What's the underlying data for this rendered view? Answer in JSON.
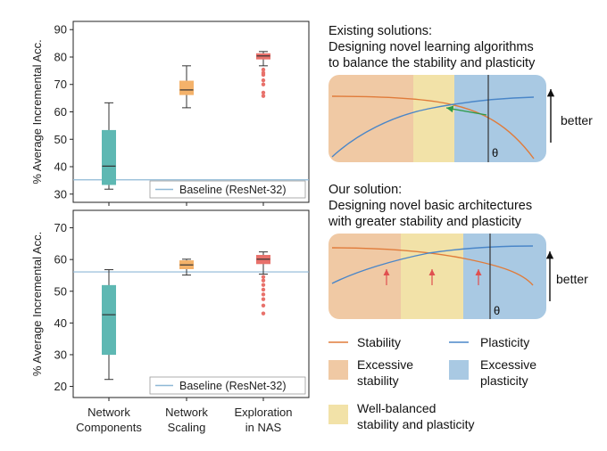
{
  "chart_data": [
    {
      "type": "boxplot",
      "panel": "top",
      "ylabel": "% Average Incremental Acc.",
      "ylim": [
        27,
        93
      ],
      "yticks": [
        30,
        40,
        50,
        60,
        70,
        80,
        90
      ],
      "categories": [
        "Network\nComponents",
        "Network\nScaling",
        "Exploration\nin NAS"
      ],
      "boxes": [
        {
          "min": 31.8,
          "q1": 33.5,
          "median": 40.2,
          "q3": 53.2,
          "max": 63.3,
          "outliers": [],
          "color": "#5eb8b3"
        },
        {
          "min": 61.5,
          "q1": 66.3,
          "median": 68.0,
          "q3": 71.2,
          "max": 76.8,
          "outliers": [],
          "color": "#f4b26a"
        },
        {
          "min": 76.8,
          "q1": 79.3,
          "median": 80.4,
          "q3": 81.2,
          "max": 82.0,
          "outliers": [
            75.4,
            74.2,
            73.5,
            71.5,
            70.0,
            67.0,
            65.8
          ],
          "color": "#e8716b"
        }
      ],
      "baseline": {
        "value": 35.2,
        "label": "Baseline (ResNet-32)"
      }
    },
    {
      "type": "boxplot",
      "panel": "bottom",
      "ylabel": "% Average Incremental Acc.",
      "ylim": [
        16.5,
        75.5
      ],
      "yticks": [
        20,
        30,
        40,
        50,
        60,
        70
      ],
      "categories": [
        "Network\nComponents",
        "Network\nScaling",
        "Exploration\nin NAS"
      ],
      "boxes": [
        {
          "min": 22.2,
          "q1": 30.1,
          "median": 42.6,
          "q3": 51.8,
          "max": 56.8,
          "outliers": [],
          "color": "#5eb8b3"
        },
        {
          "min": 55.1,
          "q1": 57.1,
          "median": 58.3,
          "q3": 59.6,
          "max": 60.1,
          "outliers": [],
          "color": "#f4b26a"
        },
        {
          "min": 55.4,
          "q1": 58.7,
          "median": 60.1,
          "q3": 61.3,
          "max": 62.4,
          "outliers": [
            54.5,
            53.4,
            52.0,
            50.5,
            49.0,
            47.5,
            45.5,
            43.0
          ],
          "color": "#e8716b"
        }
      ],
      "baseline": {
        "value": 56.1,
        "label": "Baseline (ResNet-32)"
      }
    }
  ],
  "right": {
    "existing_title": "Existing solutions:",
    "existing_line1": "Designing novel learning algorithms",
    "existing_line2": "to balance the stability and plasticity",
    "our_title": "Our solution:",
    "our_line1": "Designing novel basic architectures",
    "our_line2": "with greater stability and plasticity",
    "better_label": "better",
    "theta": "θ"
  },
  "legend": {
    "stability": "Stability",
    "plasticity": "Plasticity",
    "excessive_stability_1": "Excessive",
    "excessive_stability_2": "stability",
    "excessive_plasticity_1": "Excessive",
    "excessive_plasticity_2": "plasticity",
    "balanced_1": "Well-balanced",
    "balanced_2": "stability and plasticity"
  },
  "colors": {
    "stability_line": "#e07b3a",
    "plasticity_line": "#4a86c8",
    "excessive_stability_fill": "#f0c9a4",
    "balanced_fill": "#f2e2a8",
    "excessive_plasticity_fill": "#a9c9e3",
    "baseline": "#8eb8d6",
    "arrow_green": "#2e9a4a",
    "arrow_red": "#e05050"
  }
}
